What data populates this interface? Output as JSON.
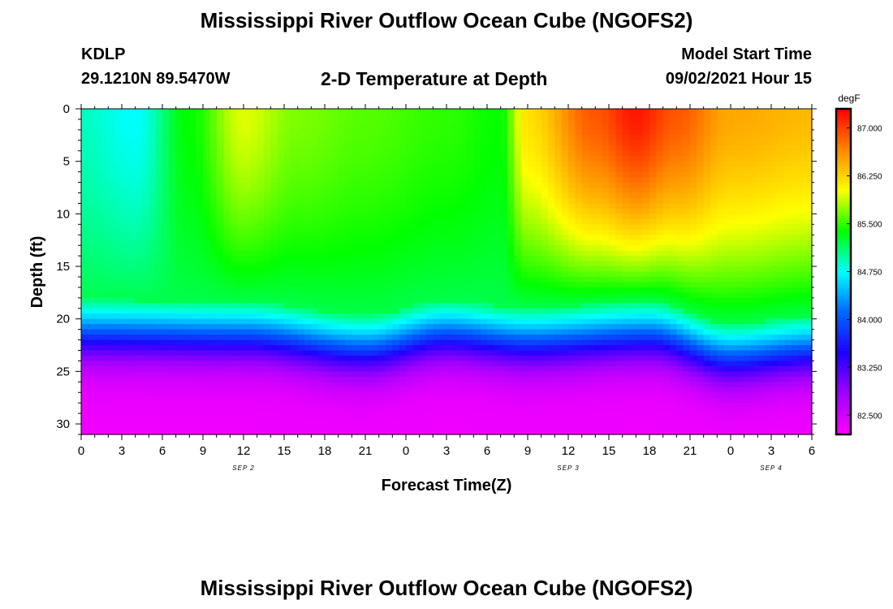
{
  "header": {
    "title": "Mississippi River Outflow Ocean Cube (NGOFS2)",
    "station": "KDLP",
    "coords": "29.1210N  89.5470W",
    "subtitle": "2-D Temperature at Depth",
    "model_label": "Model Start Time",
    "model_time": "09/02/2021 Hour 15"
  },
  "footer": {
    "title": "Mississippi River Outflow Ocean Cube (NGOFS2)"
  },
  "chart_data": {
    "type": "heatmap",
    "title": "2-D Temperature at Depth",
    "xlabel": "Forecast Time(Z)",
    "ylabel": "Depth (ft)",
    "x_tick_labels": [
      "0",
      "3",
      "6",
      "9",
      "12",
      "15",
      "18",
      "21",
      "0",
      "3",
      "6",
      "9",
      "12",
      "15",
      "18",
      "21",
      "0",
      "3",
      "6"
    ],
    "date_labels": [
      {
        "label": "SEP 2",
        "x_hours": 12
      },
      {
        "label": "SEP 3",
        "x_hours": 36
      },
      {
        "label": "SEP 4",
        "x_hours": 51
      }
    ],
    "xlim_hours": [
      0,
      54
    ],
    "ylim_ft": [
      31,
      0
    ],
    "y_ticks": [
      0,
      5,
      10,
      15,
      20,
      25,
      30
    ],
    "colorbar": {
      "unit": "degF",
      "vmin": 82.2,
      "vmax": 87.3,
      "tick_values": [
        82.5,
        83.25,
        84.0,
        84.75,
        85.5,
        86.25,
        87.0
      ],
      "tick_labels": [
        "82.500",
        "83.250",
        "84.000",
        "84.750",
        "85.500",
        "86.250",
        "87.000"
      ],
      "colors": [
        "#ff00ff",
        "#a000ff",
        "#2000ff",
        "#0066ff",
        "#00ffff",
        "#00ff00",
        "#ffff00",
        "#ff8800",
        "#ff0000"
      ]
    },
    "surface_temperature_degF": [
      {
        "hour": 0,
        "value": 84.9
      },
      {
        "hour": 4,
        "value": 84.75
      },
      {
        "hour": 8,
        "value": 85.4
      },
      {
        "hour": 12,
        "value": 85.95
      },
      {
        "hour": 16,
        "value": 85.7
      },
      {
        "hour": 21,
        "value": 85.6
      },
      {
        "hour": 27,
        "value": 85.5
      },
      {
        "hour": 31,
        "value": 85.4
      },
      {
        "hour": 33,
        "value": 86.2
      },
      {
        "hour": 38,
        "value": 86.9
      },
      {
        "hour": 41,
        "value": 87.2
      },
      {
        "hour": 44,
        "value": 86.9
      },
      {
        "hour": 48,
        "value": 86.5
      },
      {
        "hour": 54,
        "value": 86.4
      }
    ],
    "thermocline_depth_ft": [
      {
        "hour": 0,
        "value": 22.7
      },
      {
        "hour": 12,
        "value": 22.9
      },
      {
        "hour": 21,
        "value": 24.2
      },
      {
        "hour": 27,
        "value": 22.8
      },
      {
        "hour": 33,
        "value": 23.5
      },
      {
        "hour": 42,
        "value": 22.9
      },
      {
        "hour": 48,
        "value": 25.0
      },
      {
        "hour": 54,
        "value": 24.3
      }
    ],
    "bottom_temperature_degF": 82.3
  }
}
